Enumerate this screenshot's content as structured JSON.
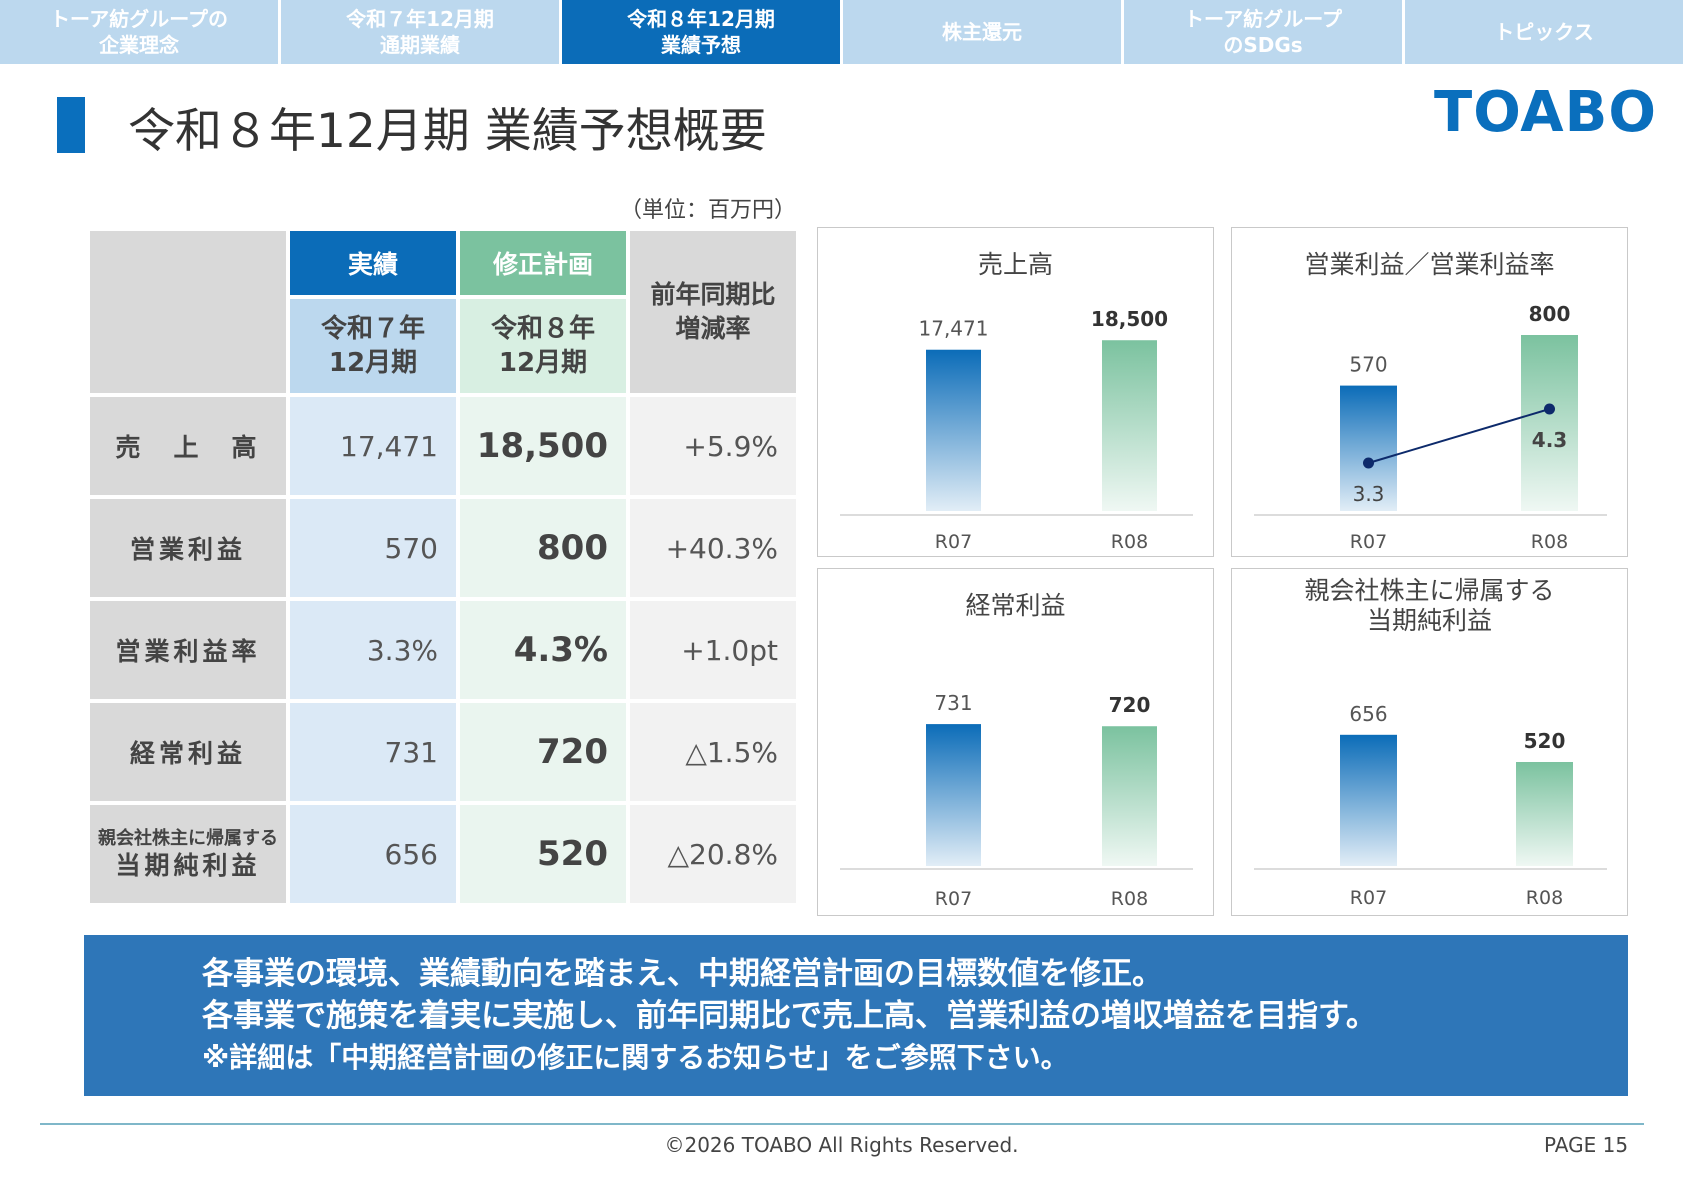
{
  "tabs": [
    {
      "label": "トーア紡グループの\n企業理念",
      "active": false
    },
    {
      "label": "令和７年12月期\n通期業績",
      "active": false
    },
    {
      "label": "令和８年12月期\n業績予想",
      "active": true
    },
    {
      "label": "株主還元",
      "active": false
    },
    {
      "label": "トーア紡グループ\nのSDGs",
      "active": false
    },
    {
      "label": "トピックス",
      "active": false
    }
  ],
  "page_title": "令和８年12月期 業績予想概要",
  "logo": "TOABO",
  "unit_note": "（単位：百万円）",
  "table": {
    "header": {
      "actual": "実績",
      "plan": "修正計画",
      "yoy": "前年同期比\n増減率",
      "actual_period": "令和７年\n12月期",
      "plan_period": "令和８年\n12月期"
    },
    "rows": [
      {
        "label": "売　上　高",
        "actual": "17,471",
        "plan": "18,500",
        "yoy": "+5.9%"
      },
      {
        "label": "営業利益",
        "actual": "570",
        "plan": "800",
        "yoy": "+40.3%"
      },
      {
        "label": "営業利益率",
        "actual": "3.3%",
        "plan": "4.3%",
        "yoy": "+1.0pt"
      },
      {
        "label": "経常利益",
        "actual": "731",
        "plan": "720",
        "yoy": "△1.5%"
      },
      {
        "label_small": "親会社株主に帰属する",
        "label": "当期純利益",
        "actual": "656",
        "plan": "520",
        "yoy": "△20.8%"
      }
    ]
  },
  "chart_data": [
    {
      "type": "bar",
      "title": "売上高",
      "categories": [
        "R07",
        "R08"
      ],
      "values": [
        17471,
        18500
      ],
      "value_labels": [
        "17,471",
        "18,500"
      ],
      "colors": [
        "#0b6cb8",
        "#7bc29f"
      ]
    },
    {
      "type": "bar",
      "title": "営業利益／営業利益率",
      "categories": [
        "R07",
        "R08"
      ],
      "values": [
        570,
        800
      ],
      "value_labels": [
        "570",
        "800"
      ],
      "line": {
        "values": [
          3.3,
          4.3
        ],
        "labels": [
          "3.3",
          "4.3"
        ],
        "color": "#0d2a6b"
      },
      "colors": [
        "#0b6cb8",
        "#7bc29f"
      ]
    },
    {
      "type": "bar",
      "title": "経常利益",
      "categories": [
        "R07",
        "R08"
      ],
      "values": [
        731,
        720
      ],
      "value_labels": [
        "731",
        "720"
      ],
      "colors": [
        "#0b6cb8",
        "#7bc29f"
      ]
    },
    {
      "type": "bar",
      "title": "親会社株主に帰属する\n当期純利益",
      "categories": [
        "R07",
        "R08"
      ],
      "values": [
        656,
        520
      ],
      "value_labels": [
        "656",
        "520"
      ],
      "colors": [
        "#0b6cb8",
        "#7bc29f"
      ]
    }
  ],
  "message": {
    "line1": "各事業の環境、業績動向を踏まえ、中期経営計画の目標数値を修正。",
    "line2": "各事業で施策を着実に実施し、前年同期比で売上高、営業利益の増収増益を目指す。",
    "note": "※詳細は「中期経営計画の修正に関するお知らせ」をご参照下さい。"
  },
  "footer": {
    "copyright": "©2026 TOABO All Rights Reserved.",
    "page": "PAGE 15"
  }
}
